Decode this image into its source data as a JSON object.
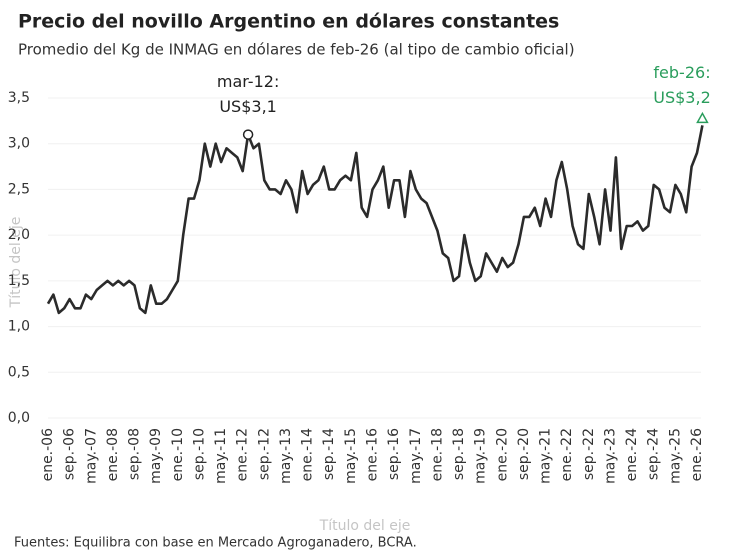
{
  "chart_data": {
    "type": "line",
    "title": "Precio del novillo Argentino en dólares constantes",
    "subtitle": "Promedio del Kg de INMAG en dólares de feb-26 (al tipo de cambio oficial)",
    "x_axis_title": "Título del eje",
    "y_axis_title": "Título del eje",
    "source": "Fuentes: Equilibra con base en Mercado Agroganadero, BCRA.",
    "categories": [
      "ene.-06",
      null,
      null,
      null,
      "sep.-06",
      null,
      null,
      null,
      "may.-07",
      null,
      null,
      null,
      "ene.-08",
      null,
      null,
      null,
      "sep.-08",
      null,
      null,
      null,
      "may.-09",
      null,
      null,
      null,
      "ene.-10",
      null,
      null,
      null,
      "sep.-10",
      null,
      null,
      null,
      "may.-11",
      null,
      null,
      null,
      "ene.-12",
      null,
      null,
      null,
      "sep.-12",
      null,
      null,
      null,
      "may.-13",
      null,
      null,
      null,
      "ene.-14",
      null,
      null,
      null,
      "sep.-14",
      null,
      null,
      null,
      "may.-15",
      null,
      null,
      null,
      "ene.-16",
      null,
      null,
      null,
      "sep.-16",
      null,
      null,
      null,
      "may.-17",
      null,
      null,
      null,
      "ene.-18",
      null,
      null,
      null,
      "sep.-18",
      null,
      null,
      null,
      "may.-19",
      null,
      null,
      null,
      "ene.-20",
      null,
      null,
      null,
      "sep.-20",
      null,
      null,
      null,
      "may.-21",
      null,
      null,
      null,
      "ene.-22",
      null,
      null,
      null,
      "sep.-22",
      null,
      null,
      null,
      "may.-23",
      null,
      null,
      null,
      "ene.-24",
      null,
      null,
      null,
      "sep.-24",
      null,
      null,
      null,
      "may.-25",
      null,
      null,
      null,
      "ene.-26",
      null
    ],
    "series": [
      {
        "color": "#2b2b2b",
        "values": [
          1.25,
          1.35,
          1.15,
          1.2,
          1.3,
          1.2,
          1.2,
          1.35,
          1.3,
          1.4,
          1.45,
          1.5,
          1.45,
          1.5,
          1.45,
          1.5,
          1.45,
          1.2,
          1.15,
          1.45,
          1.25,
          1.25,
          1.3,
          1.4,
          1.5,
          2.0,
          2.4,
          2.4,
          2.6,
          3.0,
          2.75,
          3.0,
          2.8,
          2.95,
          2.9,
          2.85,
          2.7,
          3.1,
          2.95,
          3.0,
          2.6,
          2.5,
          2.5,
          2.45,
          2.6,
          2.5,
          2.25,
          2.7,
          2.45,
          2.55,
          2.6,
          2.75,
          2.5,
          2.5,
          2.6,
          2.65,
          2.6,
          2.9,
          2.3,
          2.2,
          2.5,
          2.6,
          2.75,
          2.3,
          2.6,
          2.6,
          2.2,
          2.7,
          2.5,
          2.4,
          2.35,
          2.2,
          2.05,
          1.8,
          1.75,
          1.5,
          1.55,
          2.0,
          1.7,
          1.5,
          1.55,
          1.8,
          1.7,
          1.6,
          1.75,
          1.65,
          1.7,
          1.9,
          2.2,
          2.2,
          2.3,
          2.1,
          2.4,
          2.2,
          2.6,
          2.8,
          2.5,
          2.1,
          1.9,
          1.85,
          2.45,
          2.2,
          1.9,
          2.5,
          2.05,
          2.85,
          1.85,
          2.1,
          2.1,
          2.15,
          2.05,
          2.1,
          2.55,
          2.5,
          2.3,
          2.25,
          2.55,
          2.45,
          2.25,
          2.75,
          2.9,
          3.2
        ]
      }
    ],
    "annotations": [
      {
        "index": 37,
        "date": "mar-12:",
        "label": "US$3,1",
        "color": "#222222",
        "marker": "circle"
      },
      {
        "index": 121,
        "date": "feb-26:",
        "label": "US$3,2",
        "color": "#2a9d5c",
        "marker": "triangle"
      }
    ],
    "ylim": [
      0,
      3.5
    ],
    "yticks": [
      {
        "value": 0,
        "label": "0,0"
      },
      {
        "value": 0.5,
        "label": "0,5"
      },
      {
        "value": 1,
        "label": "1,0"
      },
      {
        "value": 1.5,
        "label": "1,5"
      },
      {
        "value": 2,
        "label": "2,0"
      },
      {
        "value": 2.5,
        "label": "2,5"
      },
      {
        "value": 3,
        "label": "3,0"
      },
      {
        "value": 3.5,
        "label": "3,5"
      }
    ],
    "grid": true
  }
}
